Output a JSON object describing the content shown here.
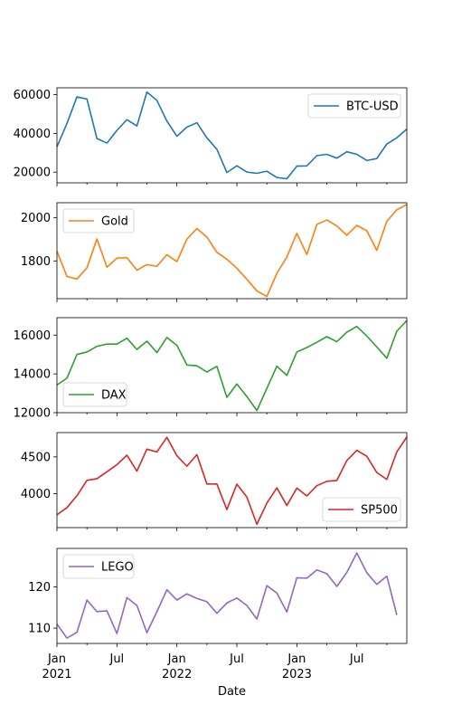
{
  "chart_data": {
    "type": "line",
    "xlabel": "Date",
    "x": [
      "2021-01",
      "2021-02",
      "2021-03",
      "2021-04",
      "2021-05",
      "2021-06",
      "2021-07",
      "2021-08",
      "2021-09",
      "2021-10",
      "2021-11",
      "2021-12",
      "2022-01",
      "2022-02",
      "2022-03",
      "2022-04",
      "2022-05",
      "2022-06",
      "2022-07",
      "2022-08",
      "2022-09",
      "2022-10",
      "2022-11",
      "2022-12",
      "2023-01",
      "2023-02",
      "2023-03",
      "2023-04",
      "2023-05",
      "2023-06",
      "2023-07",
      "2023-08",
      "2023-09",
      "2023-10",
      "2023-11",
      "2023-12"
    ],
    "x_ticks": [
      {
        "date": "2021-01",
        "major": "Jan",
        "minor": "2021"
      },
      {
        "date": "2021-07",
        "major": "Jul",
        "minor": ""
      },
      {
        "date": "2022-01",
        "major": "Jan",
        "minor": "2022"
      },
      {
        "date": "2022-07",
        "major": "Jul",
        "minor": ""
      },
      {
        "date": "2023-01",
        "major": "Jan",
        "minor": "2023"
      },
      {
        "date": "2023-07",
        "major": "Jul",
        "minor": ""
      }
    ],
    "xlim": [
      "2021-01",
      "2023-12"
    ],
    "subplots": [
      {
        "name": "BTC-USD",
        "color": "#1f77b4",
        "legend": "top-right",
        "ylim": [
          14500,
          63500
        ],
        "yticks": [
          20000,
          40000,
          60000
        ],
        "values": [
          33100,
          45100,
          58800,
          57700,
          37300,
          35000,
          41500,
          47100,
          43800,
          61300,
          57000,
          46300,
          38500,
          43200,
          45500,
          37700,
          31800,
          19800,
          23300,
          20050,
          19400,
          20500,
          17200,
          16600,
          23100,
          23200,
          28500,
          29200,
          27200,
          30500,
          29200,
          26000,
          27000,
          34500,
          37700,
          42200
        ]
      },
      {
        "name": "Gold",
        "color": "#ff7f0e",
        "legend": "top-left",
        "ylim": [
          1625,
          2070
        ],
        "yticks": [
          1800,
          2000
        ],
        "values": [
          1845,
          1728,
          1716,
          1768,
          1902,
          1771,
          1813,
          1815,
          1757,
          1783,
          1775,
          1829,
          1797,
          1901,
          1950,
          1911,
          1840,
          1808,
          1766,
          1715,
          1661,
          1635,
          1742,
          1818,
          1928,
          1830,
          1969,
          1990,
          1962,
          1919,
          1965,
          1940,
          1849,
          1984,
          2037,
          2062
        ]
      },
      {
        "name": "DAX",
        "color": "#2ca02c",
        "legend": "bottom-left",
        "ylim": [
          12000,
          16900
        ],
        "yticks": [
          12000,
          14000,
          16000
        ],
        "values": [
          13430,
          13780,
          15000,
          15130,
          15420,
          15540,
          15540,
          15840,
          15260,
          15690,
          15100,
          15880,
          15470,
          14460,
          14420,
          14100,
          14390,
          12790,
          13480,
          12830,
          12110,
          13250,
          14400,
          13920,
          15130,
          15360,
          15630,
          15920,
          15660,
          16150,
          16450,
          15950,
          15390,
          14810,
          16200,
          16750
        ]
      },
      {
        "name": "SP500",
        "color": "#d62728",
        "legend": "bottom-right",
        "ylim": [
          3540,
          4830
        ],
        "yticks": [
          4000,
          4500
        ],
        "values": [
          3714,
          3811,
          3973,
          4181,
          4204,
          4298,
          4395,
          4523,
          4307,
          4605,
          4567,
          4766,
          4516,
          4374,
          4530,
          4132,
          4132,
          3785,
          4130,
          3955,
          3586,
          3872,
          4080,
          3840,
          4077,
          3970,
          4109,
          4169,
          4180,
          4450,
          4589,
          4508,
          4288,
          4194,
          4568,
          4770
        ]
      },
      {
        "name": "LEGO",
        "color": "#9467bd",
        "legend": "top-left",
        "ylim": [
          106.3,
          129.3
        ],
        "yticks": [
          110,
          120
        ],
        "values": [
          111.0,
          107.6,
          109.0,
          116.8,
          114.0,
          114.2,
          108.7,
          117.4,
          115.5,
          108.9,
          114.0,
          119.3,
          116.8,
          118.3,
          117.2,
          116.4,
          113.6,
          116.1,
          117.3,
          115.5,
          112.2,
          120.3,
          118.5,
          113.9,
          122.2,
          122.1,
          124.1,
          123.2,
          120.1,
          123.5,
          128.2,
          123.4,
          120.6,
          122.6,
          113.2,
          null
        ]
      }
    ]
  }
}
